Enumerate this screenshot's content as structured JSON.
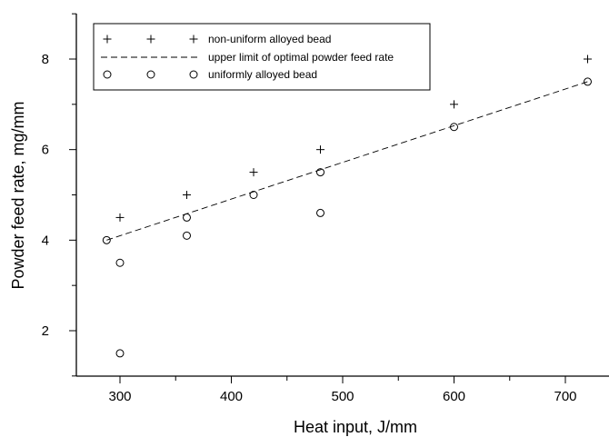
{
  "chart_data": {
    "type": "scatter",
    "xlabel": "Heat input, J/mm",
    "ylabel": "Powder feed rate, mg/mm",
    "xlim": [
      250,
      725
    ],
    "ylim": [
      1,
      9
    ],
    "xticks": [
      300,
      400,
      500,
      600,
      700
    ],
    "yticks": [
      2,
      4,
      6,
      8
    ],
    "grid": false,
    "legend_position": "top-left",
    "series": [
      {
        "name": "non-uniform alloyed bead",
        "marker": "plus",
        "points": [
          [
            300,
            4.5
          ],
          [
            360,
            5.0
          ],
          [
            420,
            5.5
          ],
          [
            480,
            6.0
          ],
          [
            600,
            7.0
          ],
          [
            720,
            8.0
          ]
        ]
      },
      {
        "name": "upper limit of optimal powder feed rate",
        "marker": "dashed-line",
        "points": [
          [
            288,
            4.0
          ],
          [
            720,
            7.5
          ]
        ]
      },
      {
        "name": "uniformly alloyed bead",
        "marker": "circle",
        "points": [
          [
            288,
            4.0
          ],
          [
            300,
            3.5
          ],
          [
            300,
            1.5
          ],
          [
            360,
            4.5
          ],
          [
            360,
            4.1
          ],
          [
            420,
            5.0
          ],
          [
            480,
            5.5
          ],
          [
            480,
            4.6
          ],
          [
            600,
            6.5
          ],
          [
            720,
            7.5
          ]
        ]
      }
    ]
  }
}
